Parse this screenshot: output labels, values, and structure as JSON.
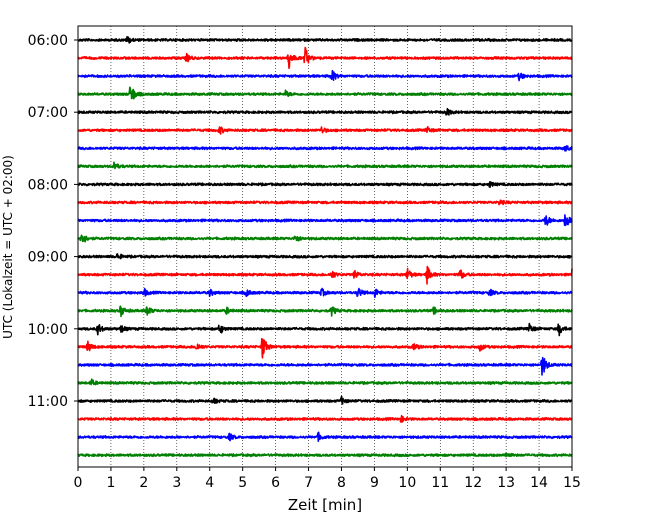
{
  "chart_data": {
    "type": "line",
    "title": "",
    "xlabel": "Zeit  [min]",
    "ylabel": "UTC (Lokalzeit = UTC + 02:00)",
    "xlim": [
      0,
      15
    ],
    "x_ticks": [
      "0",
      "1",
      "2",
      "3",
      "4",
      "5",
      "6",
      "7",
      "8",
      "9",
      "10",
      "11",
      "12",
      "13",
      "14",
      "15"
    ],
    "y_ticks": [
      "06:00",
      "07:00",
      "08:00",
      "09:00",
      "10:00",
      "11:00"
    ],
    "grid": "vertical dotted lines at each minute",
    "trace_colors": [
      "#000000",
      "#ff0000",
      "#0000ff",
      "#008000"
    ],
    "series": [
      {
        "start": "06:00",
        "events": [
          {
            "t": 1.5,
            "amp": 0.35
          }
        ]
      },
      {
        "start": "06:15",
        "events": [
          {
            "t": 3.3,
            "amp": 0.35
          },
          {
            "t": 6.4,
            "amp": 1.0
          },
          {
            "t": 6.9,
            "amp": 0.95
          }
        ]
      },
      {
        "start": "06:30",
        "events": [
          {
            "t": 7.7,
            "amp": 0.6
          },
          {
            "t": 13.4,
            "amp": 0.35
          }
        ]
      },
      {
        "start": "06:45",
        "events": [
          {
            "t": 1.6,
            "amp": 1.1
          },
          {
            "t": 6.3,
            "amp": 0.3
          }
        ]
      },
      {
        "start": "07:00",
        "events": [
          {
            "t": 11.2,
            "amp": 0.3
          }
        ]
      },
      {
        "start": "07:15",
        "events": [
          {
            "t": 4.3,
            "amp": 0.35
          },
          {
            "t": 7.4,
            "amp": 0.3
          },
          {
            "t": 10.6,
            "amp": 0.3
          }
        ]
      },
      {
        "start": "07:30",
        "events": [
          {
            "t": 14.8,
            "amp": 0.3
          }
        ]
      },
      {
        "start": "07:45",
        "events": [
          {
            "t": 1.1,
            "amp": 0.4
          }
        ]
      },
      {
        "start": "08:00",
        "events": [
          {
            "t": 12.5,
            "amp": 0.25
          }
        ]
      },
      {
        "start": "08:15",
        "events": [
          {
            "t": 12.8,
            "amp": 0.25
          }
        ]
      },
      {
        "start": "08:30",
        "events": [
          {
            "t": 14.2,
            "amp": 0.6
          },
          {
            "t": 14.8,
            "amp": 0.8
          }
        ]
      },
      {
        "start": "08:45",
        "events": [
          {
            "t": 0.1,
            "amp": 0.8
          },
          {
            "t": 6.6,
            "amp": 0.35
          }
        ]
      },
      {
        "start": "09:00",
        "events": [
          {
            "t": 1.2,
            "amp": 0.3
          }
        ]
      },
      {
        "start": "09:15",
        "events": [
          {
            "t": 7.7,
            "amp": 0.4
          },
          {
            "t": 8.4,
            "amp": 0.4
          },
          {
            "t": 10.0,
            "amp": 0.55
          },
          {
            "t": 10.6,
            "amp": 0.8
          },
          {
            "t": 11.6,
            "amp": 0.5
          },
          {
            "t": 15.0,
            "amp": 0.5
          }
        ]
      },
      {
        "start": "09:30",
        "events": [
          {
            "t": 2.0,
            "amp": 0.35
          },
          {
            "t": 4.0,
            "amp": 0.3
          },
          {
            "t": 5.1,
            "amp": 0.35
          },
          {
            "t": 7.4,
            "amp": 0.35
          },
          {
            "t": 8.5,
            "amp": 0.5
          },
          {
            "t": 9.0,
            "amp": 0.45
          },
          {
            "t": 12.5,
            "amp": 0.3
          }
        ]
      },
      {
        "start": "09:45",
        "events": [
          {
            "t": 1.3,
            "amp": 0.5
          },
          {
            "t": 2.1,
            "amp": 0.45
          },
          {
            "t": 4.5,
            "amp": 0.3
          },
          {
            "t": 7.7,
            "amp": 0.45
          },
          {
            "t": 10.8,
            "amp": 0.3
          }
        ]
      },
      {
        "start": "10:00",
        "events": [
          {
            "t": 0.6,
            "amp": 0.55
          },
          {
            "t": 1.3,
            "amp": 0.35
          },
          {
            "t": 4.3,
            "amp": 0.5
          },
          {
            "t": 13.7,
            "amp": 0.45
          },
          {
            "t": 14.6,
            "amp": 0.6
          }
        ]
      },
      {
        "start": "10:15",
        "events": [
          {
            "t": 0.3,
            "amp": 0.5
          },
          {
            "t": 3.6,
            "amp": 0.35
          },
          {
            "t": 5.6,
            "amp": 1.2
          },
          {
            "t": 10.2,
            "amp": 0.3
          },
          {
            "t": 12.2,
            "amp": 0.35
          }
        ]
      },
      {
        "start": "10:30",
        "events": [
          {
            "t": 14.1,
            "amp": 1.1
          }
        ]
      },
      {
        "start": "10:45",
        "events": [
          {
            "t": 0.4,
            "amp": 0.3
          }
        ]
      },
      {
        "start": "11:00",
        "events": [
          {
            "t": 4.1,
            "amp": 0.3
          },
          {
            "t": 8.0,
            "amp": 0.35
          }
        ]
      },
      {
        "start": "11:15",
        "events": [
          {
            "t": 9.8,
            "amp": 0.3
          }
        ]
      },
      {
        "start": "11:30",
        "events": [
          {
            "t": 4.6,
            "amp": 0.3
          },
          {
            "t": 7.3,
            "amp": 0.35
          }
        ]
      },
      {
        "start": "11:45",
        "events": [
          {
            "t": 13.0,
            "amp": 0.25
          }
        ]
      }
    ]
  }
}
